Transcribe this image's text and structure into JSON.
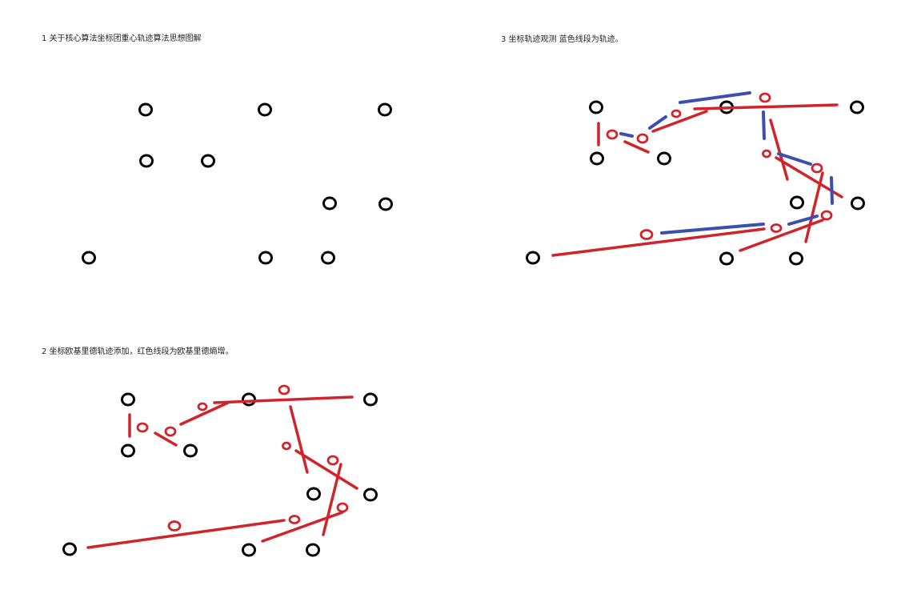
{
  "panels": {
    "p1": {
      "caption": "1  关于核心算法坐标团重心轨迹算法思想图解"
    },
    "p3": {
      "caption": "3  坐标轨迹观测  蓝色线段为轨迹。"
    },
    "p2": {
      "caption": "2  坐标欧基里德轨迹添加，红色线段为欧基里德熵增。"
    }
  },
  "colors": {
    "node": "#000000",
    "red": "#d2232a",
    "blue": "#3a4fb0",
    "text": "#222222"
  }
}
